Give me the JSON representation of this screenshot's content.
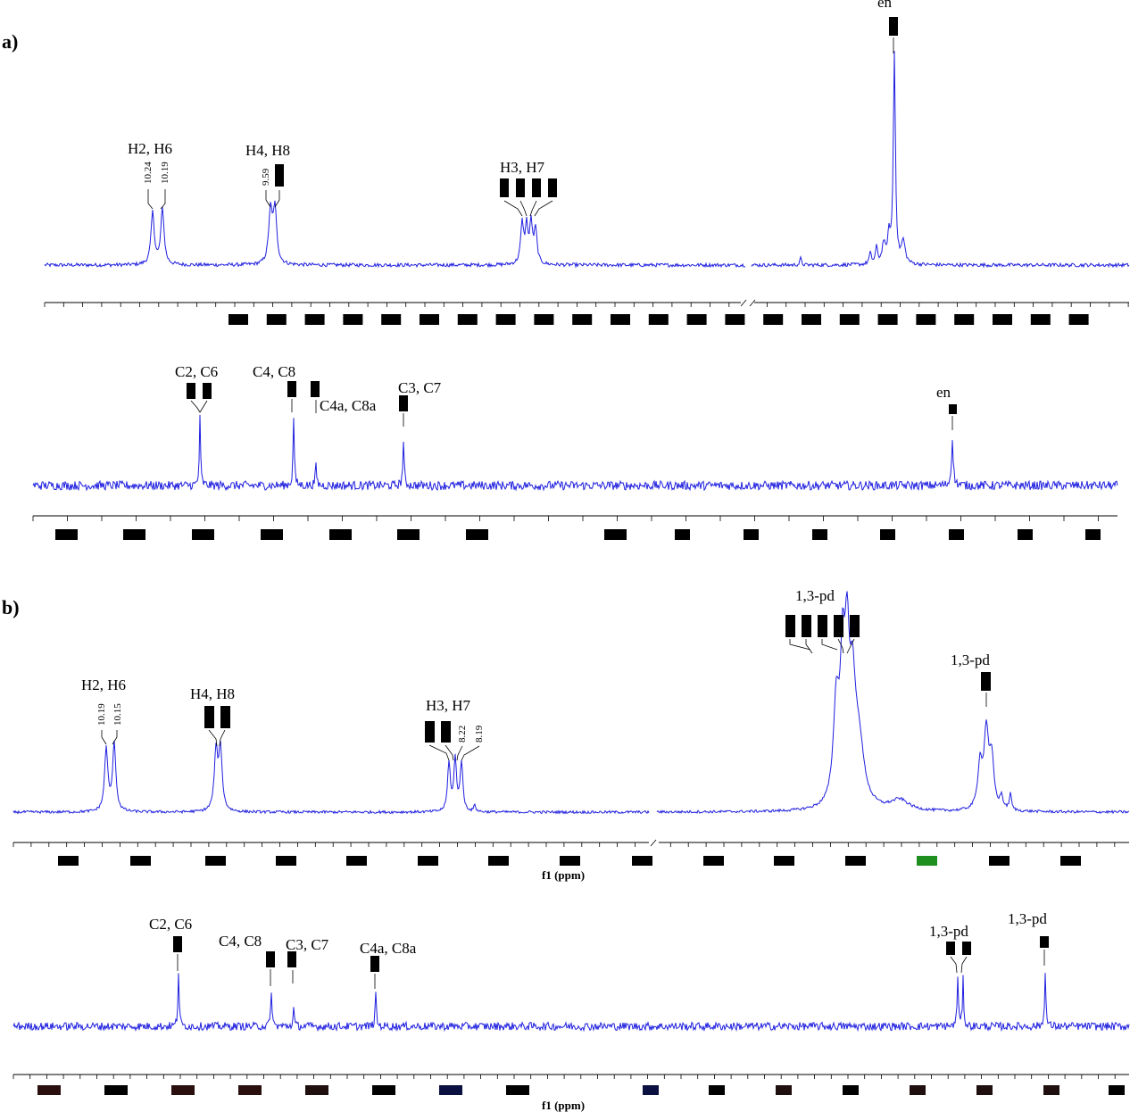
{
  "figure": {
    "panel_a_label": "a)",
    "panel_b_label": "b)",
    "axis_title": "f1 (ppm)",
    "spectrum_color": "#1f1fe0",
    "redaction_color": "#000000"
  },
  "chart_data": [
    {
      "type": "line",
      "panel": "a)",
      "nucleus": "1H",
      "xlabel": "",
      "x_reversed": true,
      "axis_break": true,
      "axis_tick_labels": "redacted",
      "series": [
        {
          "peaks": [
            {
              "label": "H2, H6",
              "shifts": [
                "10.24",
                "10.19"
              ],
              "relative_height": 0.36
            },
            {
              "label": "H4, H8",
              "shifts": [
                "9.59",
                "redacted"
              ],
              "relative_height": 0.35
            },
            {
              "label": "H3, H7",
              "shifts": [
                "redacted",
                "redacted",
                "redacted",
                "redacted"
              ],
              "relative_height": 0.3
            },
            {
              "label": "en",
              "shifts": [
                "redacted"
              ],
              "relative_height": 1.0
            }
          ]
        }
      ]
    },
    {
      "type": "line",
      "panel": "a)",
      "nucleus": "13C",
      "x_reversed": true,
      "axis_tick_labels": "redacted",
      "series": [
        {
          "peaks": [
            {
              "label": "C2, C6",
              "shifts": [
                "redacted",
                "redacted"
              ],
              "relative_height": 0.9
            },
            {
              "label": "C4, C8",
              "shifts": [
                "redacted"
              ],
              "relative_height": 0.9
            },
            {
              "label": "C4a, C8a",
              "shifts": [
                "redacted"
              ],
              "relative_height": 0.35
            },
            {
              "label": "C3, C7",
              "shifts": [
                "redacted"
              ],
              "relative_height": 0.6
            },
            {
              "label": "en",
              "shifts": [
                "redacted"
              ],
              "relative_height": 0.6
            }
          ]
        }
      ]
    },
    {
      "type": "line",
      "panel": "b)",
      "nucleus": "1H",
      "xlabel": "f1 (ppm)",
      "x_reversed": true,
      "axis_break": true,
      "axis_tick_labels": "redacted",
      "series": [
        {
          "peaks": [
            {
              "label": "H2, H6",
              "shifts": [
                "10.19",
                "10.15"
              ],
              "relative_height": 0.4
            },
            {
              "label": "H4, H8",
              "shifts": [
                "redacted",
                "redacted"
              ],
              "relative_height": 0.37
            },
            {
              "label": "H3, H7",
              "shifts": [
                "redacted",
                "redacted",
                "8.22",
                "8.19"
              ],
              "relative_height": 0.32
            },
            {
              "label": "1,3-pd",
              "shifts": [
                "redacted",
                "redacted",
                "redacted",
                "redacted",
                "redacted"
              ],
              "relative_height": 1.0
            },
            {
              "label": "1,3-pd",
              "shifts": [
                "redacted"
              ],
              "relative_height": 0.6
            }
          ]
        }
      ]
    },
    {
      "type": "line",
      "panel": "b)",
      "nucleus": "13C",
      "xlabel": "f1 (ppm)",
      "x_reversed": true,
      "axis_tick_labels": "redacted",
      "series": [
        {
          "peaks": [
            {
              "label": "C2, C6",
              "shifts": [
                "redacted"
              ],
              "relative_height": 0.8
            },
            {
              "label": "C4, C8",
              "shifts": [
                "redacted"
              ],
              "relative_height": 0.6
            },
            {
              "label": "C3, C7",
              "shifts": [
                "redacted"
              ],
              "relative_height": 0.3
            },
            {
              "label": "C4a, C8a",
              "shifts": [
                "redacted"
              ],
              "relative_height": 0.55
            },
            {
              "label": "1,3-pd",
              "shifts": [
                "redacted",
                "redacted"
              ],
              "relative_height": 0.8
            },
            {
              "label": "1,3-pd",
              "shifts": [
                "redacted"
              ],
              "relative_height": 0.85
            }
          ]
        }
      ]
    }
  ]
}
